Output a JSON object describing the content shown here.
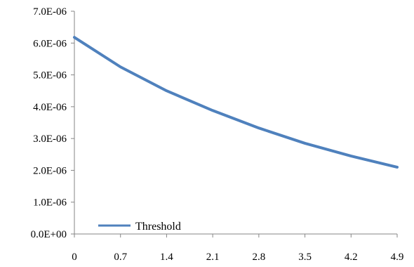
{
  "chart_data": {
    "type": "line",
    "title": "",
    "xlabel": "",
    "ylabel": "",
    "x": [
      0,
      0.7,
      1.4,
      2.1,
      2.8,
      3.5,
      4.2,
      4.9
    ],
    "x_tick_labels": [
      "0",
      "0.7",
      "1.4",
      "2.1",
      "2.8",
      "3.5",
      "4.2",
      "4.9"
    ],
    "y_tick_labels": [
      "0.0E+00",
      "1.0E-06",
      "2.0E-06",
      "3.0E-06",
      "4.0E-06",
      "5.0E-06",
      "6.0E-06",
      "7.0E-06"
    ],
    "ylim": [
      0,
      7e-06
    ],
    "grid": false,
    "legend_position": "bottom-left",
    "series": [
      {
        "name": "Threshold",
        "color": "#4f81bd",
        "values": [
          6.18e-06,
          5.25e-06,
          4.5e-06,
          3.88e-06,
          3.33e-06,
          2.85e-06,
          2.45e-06,
          2.1e-06
        ]
      }
    ]
  }
}
